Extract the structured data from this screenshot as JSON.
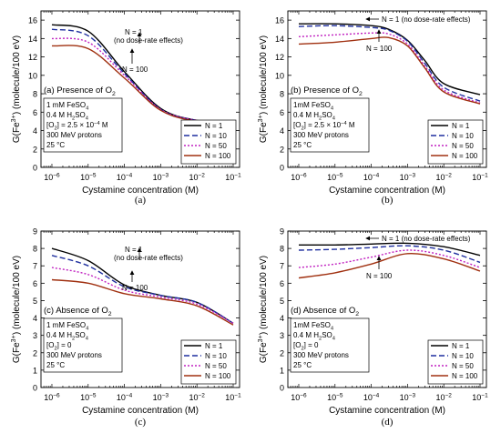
{
  "figure": {
    "caption_labels": [
      "(a)",
      "(b)",
      "(c)",
      "(d)"
    ]
  },
  "chart_data": [
    {
      "type": "line",
      "panel_label": "(a) Presence of O2",
      "xlabel": "Cystamine concentration (M)",
      "ylabel": "G(Fe3+) (molecule/100 eV)",
      "xscale": "log",
      "xlim": [
        5e-07,
        0.15
      ],
      "ylim": [
        0,
        17
      ],
      "yticks": [
        0,
        2,
        4,
        6,
        8,
        10,
        12,
        14,
        16
      ],
      "xticks": [
        "10^-6",
        "10^-5",
        "10^-4",
        "10^-3",
        "10^-2",
        "10^-1"
      ],
      "conditions": [
        "1 mM FeSO4",
        "0.4 M H2SO4",
        "[O2] = 2.5 x 10^-4 M",
        "300 MeV protons",
        "25 °C"
      ],
      "annotations": [
        "N = 1",
        "(no dose-rate effects)",
        "N = 100"
      ],
      "legend_position": "bottom-right",
      "x": [
        1e-06,
        1e-05,
        0.0001,
        0.001,
        0.01,
        0.1
      ],
      "series": [
        {
          "name": "N = 1",
          "color": "#000000",
          "dash": "solid",
          "values": [
            15.5,
            14.8,
            10.4,
            6.4,
            5.1,
            4.8
          ]
        },
        {
          "name": "N = 10",
          "color": "#1f2f9f",
          "dash": "long-dash",
          "values": [
            15.0,
            14.3,
            10.2,
            6.3,
            5.1,
            4.8
          ]
        },
        {
          "name": "N = 50",
          "color": "#c020c0",
          "dash": "dot",
          "values": [
            14.0,
            13.6,
            10.0,
            6.3,
            5.1,
            4.8
          ]
        },
        {
          "name": "N = 100",
          "color": "#a03010",
          "dash": "solid",
          "values": [
            13.2,
            12.9,
            9.7,
            6.2,
            5.0,
            4.8
          ]
        }
      ]
    },
    {
      "type": "line",
      "panel_label": "(b) Presence of O2",
      "xlabel": "Cystamine concentration (M)",
      "ylabel": "G(Fe3+) (molecule/100 eV)",
      "xscale": "log",
      "xlim": [
        5e-07,
        0.15
      ],
      "ylim": [
        0,
        17
      ],
      "yticks": [
        0,
        2,
        4,
        6,
        8,
        10,
        12,
        14,
        16
      ],
      "xticks": [
        "10^-6",
        "10^-5",
        "10^-4",
        "10^-3",
        "10^-2",
        "10^-1"
      ],
      "conditions": [
        "1mM FeSO4",
        "0.4 M H2SO4",
        "[O2] = 2.5 x 10^-4 M",
        "300 MeV protons",
        "25 °C"
      ],
      "annotations": [
        "N = 1 (no dose-rate effects)",
        "N = 100"
      ],
      "legend_position": "bottom-right",
      "x": [
        1e-06,
        1e-05,
        0.0001,
        0.0003,
        0.001,
        0.003,
        0.01,
        0.1
      ],
      "series": [
        {
          "name": "N = 1",
          "color": "#000000",
          "dash": "solid",
          "values": [
            15.6,
            15.6,
            15.4,
            15.0,
            13.8,
            11.6,
            9.1,
            7.9
          ]
        },
        {
          "name": "N = 10",
          "color": "#1f2f9f",
          "dash": "long-dash",
          "values": [
            15.3,
            15.4,
            15.2,
            14.9,
            13.7,
            11.3,
            8.7,
            7.2
          ]
        },
        {
          "name": "N = 50",
          "color": "#c020c0",
          "dash": "dot",
          "values": [
            14.2,
            14.4,
            14.6,
            14.5,
            13.4,
            11.0,
            8.4,
            7.0
          ]
        },
        {
          "name": "N = 100",
          "color": "#a03010",
          "dash": "solid",
          "values": [
            13.4,
            13.6,
            14.0,
            14.1,
            13.2,
            10.8,
            8.2,
            6.9
          ]
        }
      ]
    },
    {
      "type": "line",
      "panel_label": "(c) Absence of O2",
      "xlabel": "Cystamine concentration (M)",
      "ylabel": "G(Fe3+) (molecule/100 eV)",
      "xscale": "log",
      "xlim": [
        5e-07,
        0.15
      ],
      "ylim": [
        0,
        9
      ],
      "yticks": [
        0,
        1,
        2,
        3,
        4,
        5,
        6,
        7,
        8,
        9
      ],
      "xticks": [
        "10^-6",
        "10^-5",
        "10^-4",
        "10^-3",
        "10^-2",
        "10^-1"
      ],
      "conditions": [
        "1 mM FeSO4",
        "0.4 M H2SO4",
        "[O2] = 0",
        "300 MeV protons",
        "25 °C"
      ],
      "annotations": [
        "N = 1",
        "(no dose-rate effects)",
        "N = 100"
      ],
      "legend_position": "bottom-right",
      "x": [
        1e-06,
        1e-05,
        0.0001,
        0.001,
        0.01,
        0.1
      ],
      "series": [
        {
          "name": "N = 1",
          "color": "#000000",
          "dash": "solid",
          "values": [
            8.0,
            7.3,
            5.9,
            5.3,
            4.9,
            3.7
          ]
        },
        {
          "name": "N = 10",
          "color": "#1f2f9f",
          "dash": "long-dash",
          "values": [
            7.6,
            7.0,
            5.8,
            5.3,
            4.9,
            3.7
          ]
        },
        {
          "name": "N = 50",
          "color": "#c020c0",
          "dash": "dot",
          "values": [
            6.9,
            6.5,
            5.6,
            5.2,
            4.8,
            3.7
          ]
        },
        {
          "name": "N = 100",
          "color": "#a03010",
          "dash": "solid",
          "values": [
            6.2,
            6.0,
            5.4,
            5.1,
            4.7,
            3.6
          ]
        }
      ]
    },
    {
      "type": "line",
      "panel_label": "(d) Absence of O2",
      "xlabel": "Cystamine concentration (M)",
      "ylabel": "G(Fe3+) (molecule/100 eV)",
      "xscale": "log",
      "xlim": [
        5e-07,
        0.15
      ],
      "ylim": [
        0,
        9
      ],
      "yticks": [
        0,
        1,
        2,
        3,
        4,
        5,
        6,
        7,
        8,
        9
      ],
      "xticks": [
        "10^-6",
        "10^-5",
        "10^-4",
        "10^-3",
        "10^-2",
        "10^-1"
      ],
      "conditions": [
        "1mM FeSO4",
        "0.4 M H2SO4",
        "[O2] = 0",
        "300 MeV protons",
        "25 °C"
      ],
      "annotations": [
        "N = 1 (no dose-rate effects)",
        "N = 100"
      ],
      "legend_position": "bottom-right",
      "x": [
        1e-06,
        1e-05,
        0.0001,
        0.001,
        0.01,
        0.1
      ],
      "series": [
        {
          "name": "N = 1",
          "color": "#000000",
          "dash": "solid",
          "values": [
            8.2,
            8.2,
            8.25,
            8.3,
            8.1,
            7.6
          ]
        },
        {
          "name": "N = 10",
          "color": "#1f2f9f",
          "dash": "long-dash",
          "values": [
            7.9,
            7.95,
            8.05,
            8.15,
            7.9,
            7.2
          ]
        },
        {
          "name": "N = 50",
          "color": "#c020c0",
          "dash": "dot",
          "values": [
            6.9,
            7.1,
            7.5,
            7.9,
            7.6,
            6.9
          ]
        },
        {
          "name": "N = 100",
          "color": "#a03010",
          "dash": "solid",
          "values": [
            6.3,
            6.6,
            7.1,
            7.7,
            7.4,
            6.7
          ]
        }
      ]
    }
  ]
}
